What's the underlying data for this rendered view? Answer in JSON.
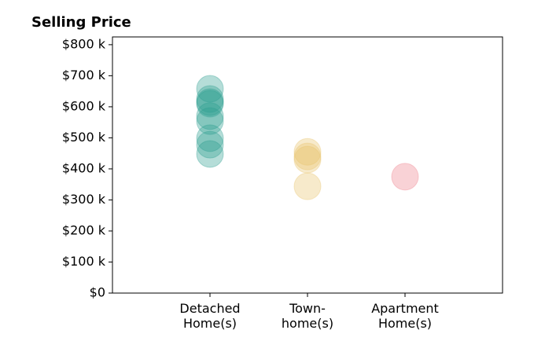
{
  "chart_data": {
    "type": "strip",
    "title": "Selling Price",
    "categories": [
      "Detached\nHome(s)",
      "Town-\nhome(s)",
      "Apartment\nHome(s)"
    ],
    "values": [
      [
        658000,
        625000,
        615000,
        610000,
        570000,
        554000,
        499000,
        478000,
        448000
      ],
      [
        455000,
        440000,
        430000,
        344000
      ],
      [
        375000
      ]
    ],
    "colors": [
      "#2a9d8f",
      "#e9c46a",
      "#ef7f8a"
    ],
    "opacity": 0.35,
    "ylim": [
      0,
      825000
    ],
    "yticks": [
      {
        "value": 0,
        "label": "$0"
      },
      {
        "value": 100000,
        "label": "$100 k"
      },
      {
        "value": 200000,
        "label": "$200 k"
      },
      {
        "value": 300000,
        "label": "$300 k"
      },
      {
        "value": 400000,
        "label": "$400 k"
      },
      {
        "value": 500000,
        "label": "$500 k"
      },
      {
        "value": 600000,
        "label": "$600 k"
      },
      {
        "value": 700000,
        "label": "$700 k"
      },
      {
        "value": 800000,
        "label": "$800 k"
      }
    ],
    "grid": false
  }
}
